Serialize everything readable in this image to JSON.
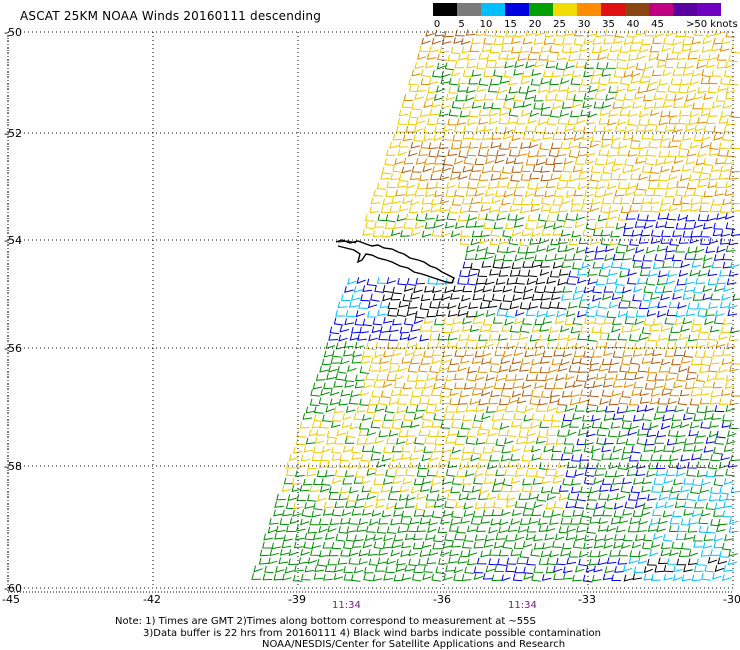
{
  "title": "ASCAT 25KM NOAA Winds 20160111 descending",
  "legend": {
    "labels": [
      "0",
      "5",
      "10",
      "15",
      "20",
      "25",
      "30",
      "35",
      "40",
      "45",
      ">50 knots"
    ],
    "colors": [
      "#000000",
      "#7a7a7a",
      "#00bfff",
      "#0000e0",
      "#00a000",
      "#f0dc00",
      "#ff8c00",
      "#e01010",
      "#8b4513",
      "#c00080",
      "#5a00a0",
      "#7000c0"
    ]
  },
  "axes": {
    "lon_ticks": [
      "-45",
      "-42",
      "-39",
      "-36",
      "-33",
      "-30"
    ],
    "lat_ticks": [
      "-50",
      "-52",
      "-54",
      "-56",
      "-58",
      "-60"
    ]
  },
  "times": [
    "11:34",
    "11:34"
  ],
  "notes": {
    "line1": "Note:  1) Times are GMT  2)Times along bottom correspond to measurement at ~55S",
    "line2": "3)Data buffer is 22 hrs from 20160111  4) Black wind barbs indicate possible contamination",
    "line3": "NOAA/NESDIS/Center for Satellite Applications and Research"
  },
  "map": {
    "region": "South Georgia",
    "barb_colors": {
      "black": "#000000",
      "cyan": "#00bfff",
      "blue": "#0000e0",
      "green": "#008c00",
      "yellow": "#f0c800",
      "orange": "#e08a00",
      "brown": "#b05a10"
    }
  }
}
